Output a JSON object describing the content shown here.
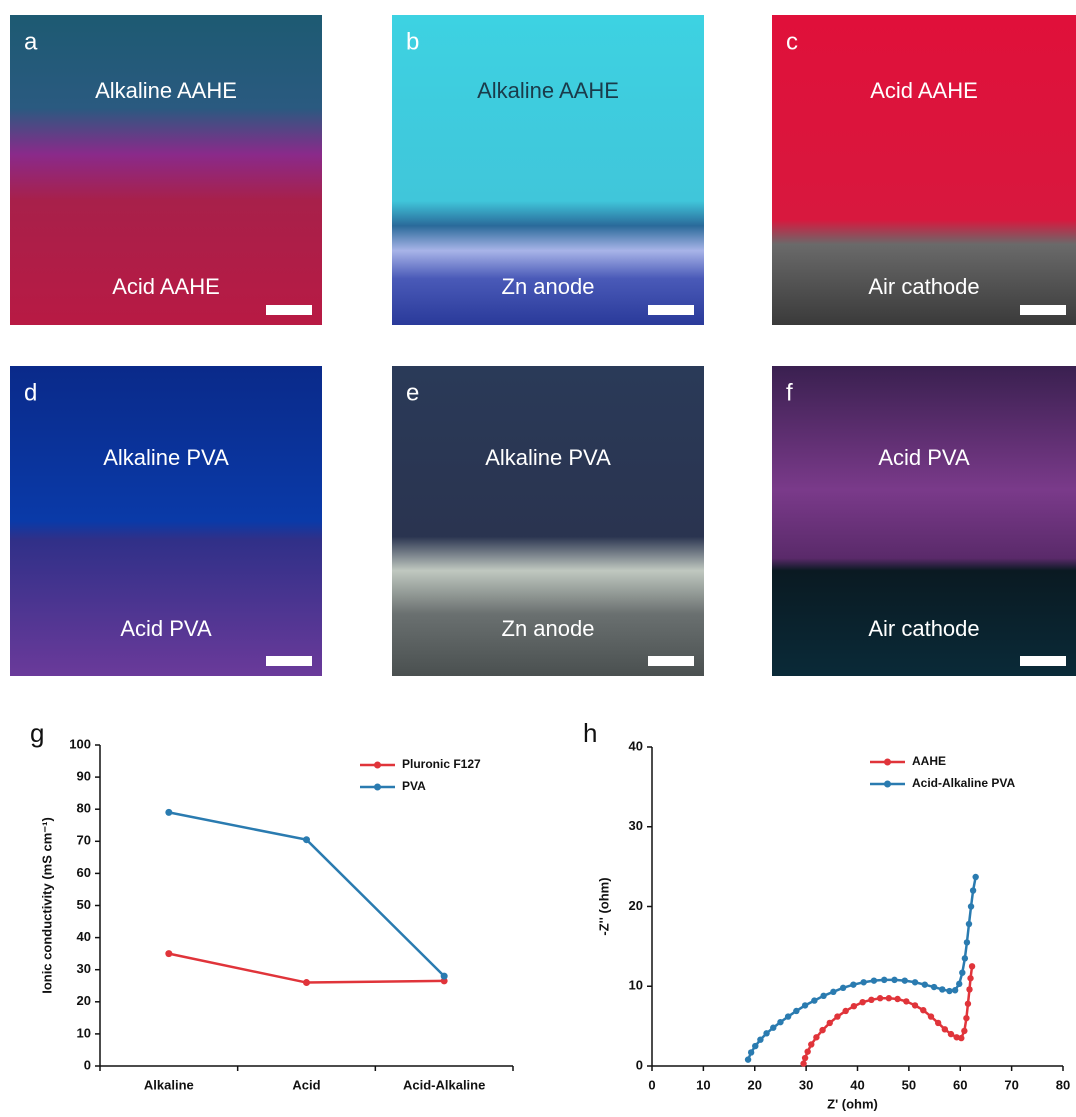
{
  "panels": [
    {
      "letter": "a",
      "top": "Alkaline AAHE",
      "bottom": "Acid AAHE"
    },
    {
      "letter": "b",
      "top": "Alkaline AAHE",
      "bottom": "Zn anode"
    },
    {
      "letter": "c",
      "top": "Acid AAHE",
      "bottom": "Air cathode"
    },
    {
      "letter": "d",
      "top": "Alkaline PVA",
      "bottom": "Acid PVA"
    },
    {
      "letter": "e",
      "top": "Alkaline PVA",
      "bottom": "Zn anode"
    },
    {
      "letter": "f",
      "top": "Acid PVA",
      "bottom": "Air cathode"
    }
  ],
  "chart_data": [
    {
      "type": "line",
      "title": "g",
      "y_label": "Ionic conductivity (mS cm⁻¹)",
      "categories": [
        "Alkaline",
        "Acid",
        "Acid-Alkaline"
      ],
      "series": [
        {
          "name": "Pluronic F127",
          "color": "#e0343a",
          "values": [
            35,
            26,
            26.5
          ]
        },
        {
          "name": "PVA",
          "color": "#2a7bb0",
          "values": [
            79,
            70.5,
            28
          ]
        }
      ],
      "ylim": [
        0,
        100
      ],
      "yticks": [
        0,
        10,
        20,
        30,
        40,
        50,
        60,
        70,
        80,
        90,
        100
      ],
      "grid": false,
      "legend": "top-right"
    },
    {
      "type": "scatter",
      "title": "h",
      "x_label": "Z' (ohm)",
      "y_label": "-Z'' (ohm)",
      "series": [
        {
          "name": "AAHE",
          "color": "#e0343a",
          "x": [
            29.5,
            29.8,
            30.3,
            31,
            32,
            33.2,
            34.6,
            36.1,
            37.7,
            39.3,
            41,
            42.7,
            44.4,
            46.1,
            47.8,
            49.5,
            51.2,
            52.8,
            54.3,
            55.7,
            57,
            58.2,
            59.3,
            60.2,
            60.8,
            61.2,
            61.5,
            61.8,
            62,
            62.3
          ],
          "values": [
            0.3,
            1,
            1.8,
            2.7,
            3.6,
            4.5,
            5.4,
            6.2,
            6.9,
            7.5,
            8,
            8.3,
            8.5,
            8.5,
            8.4,
            8.1,
            7.6,
            7,
            6.2,
            5.4,
            4.6,
            4,
            3.6,
            3.5,
            4.4,
            6,
            7.8,
            9.6,
            11,
            12.5
          ]
        },
        {
          "name": "Acid-Alkaline PVA",
          "color": "#2a7bb0",
          "x": [
            18.7,
            19.3,
            20.1,
            21.1,
            22.3,
            23.6,
            25,
            26.5,
            28.1,
            29.8,
            31.6,
            33.4,
            35.3,
            37.2,
            39.2,
            41.2,
            43.2,
            45.2,
            47.2,
            49.2,
            51.2,
            53.1,
            54.9,
            56.5,
            57.9,
            59,
            59.8,
            60.4,
            60.9,
            61.3,
            61.7,
            62.1,
            62.5,
            63
          ],
          "values": [
            0.8,
            1.7,
            2.5,
            3.3,
            4.1,
            4.8,
            5.5,
            6.2,
            6.9,
            7.6,
            8.2,
            8.8,
            9.3,
            9.8,
            10.2,
            10.5,
            10.7,
            10.8,
            10.8,
            10.7,
            10.5,
            10.2,
            9.9,
            9.6,
            9.4,
            9.5,
            10.3,
            11.7,
            13.5,
            15.5,
            17.8,
            20,
            22,
            23.7
          ]
        }
      ],
      "xlim": [
        0,
        80
      ],
      "xticks": [
        0,
        10,
        20,
        30,
        40,
        50,
        60,
        70,
        80
      ],
      "ylim": [
        0,
        40
      ],
      "yticks": [
        0,
        10,
        20,
        30,
        40
      ],
      "grid": false,
      "legend": "top-right"
    }
  ]
}
